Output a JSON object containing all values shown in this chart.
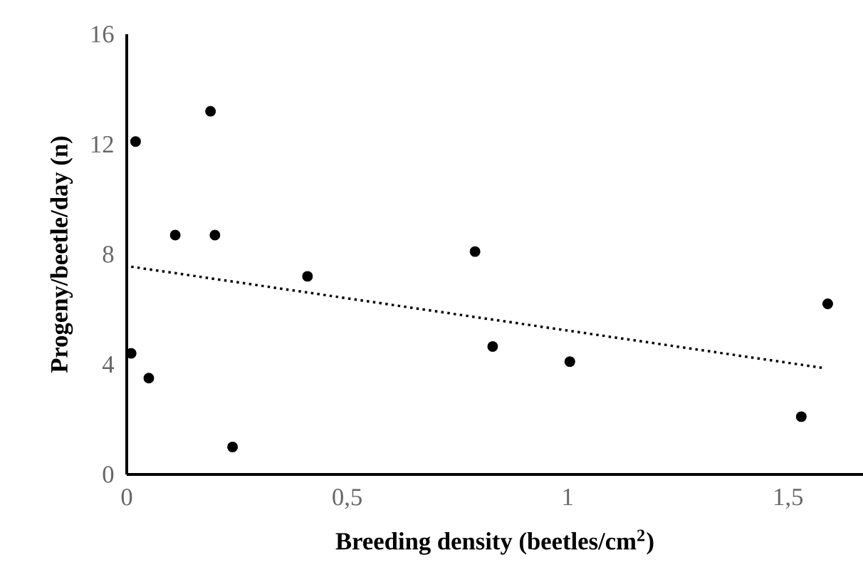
{
  "chart_data": {
    "type": "scatter",
    "xlabel": "Breeding density (beetles/cm$^{2}$)",
    "ylabel": "Progeny/beetle/day  (n)",
    "xlim": [
      0,
      1.67
    ],
    "ylim": [
      0,
      16
    ],
    "xticks": [
      0,
      {
        "value": 0.5,
        "label": "0,5"
      },
      1,
      {
        "value": 1.5,
        "label": "1,5"
      }
    ],
    "yticks": [
      0,
      4,
      8,
      12,
      16
    ],
    "series": [
      {
        "color": "#000000",
        "marker": "circle",
        "x": [
          0.01,
          0.02,
          0.05,
          0.11,
          0.19,
          0.2,
          0.24,
          0.41,
          0.79,
          0.83,
          1.005,
          1.53,
          1.59
        ],
        "values": [
          4.4,
          12.1,
          3.5,
          8.7,
          13.2,
          8.7,
          1.0,
          7.2,
          8.1,
          4.65,
          4.1,
          2.1,
          6.2
        ]
      },
      {
        "type": "line",
        "color": "#000000",
        "marker": "none",
        "line_style": "dotted",
        "x": [
          0.01,
          1.58
        ],
        "values": [
          7.55,
          3.87
        ]
      }
    ]
  }
}
